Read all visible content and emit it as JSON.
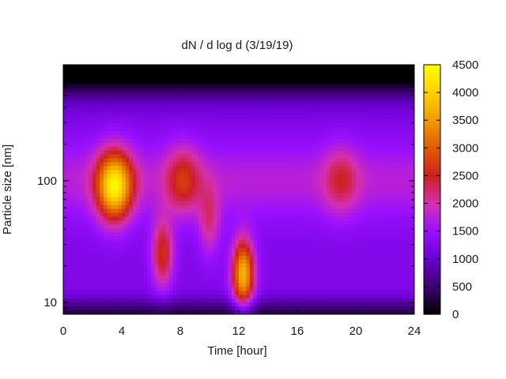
{
  "chart_data": {
    "type": "heatmap",
    "title": "dN / d log d (3/19/19)",
    "xlabel": "Time [hour]",
    "ylabel": "Particle size [nm]",
    "xlim": [
      0,
      24
    ],
    "xticks": [
      0,
      4,
      8,
      12,
      16,
      20,
      24
    ],
    "y_scale": "log",
    "ylim": [
      8,
      900
    ],
    "yticks": [
      10,
      100
    ],
    "colorbar": {
      "range": [
        0,
        4500
      ],
      "ticks": [
        0,
        500,
        1000,
        1500,
        2000,
        2500,
        3000,
        3500,
        4000,
        4500
      ],
      "colormap": [
        "#000000",
        "#3c0070",
        "#6a00d0",
        "#9a10ff",
        "#d530b0",
        "#cc2020",
        "#e05a00",
        "#f09a00",
        "#ffd000",
        "#ffff00"
      ]
    },
    "background_level": 1500,
    "features": [
      {
        "time": 3.5,
        "size": 90,
        "peak": 4200
      },
      {
        "time": 6.8,
        "size": 25,
        "peak": 2850
      },
      {
        "time": 12.3,
        "size": 17,
        "peak": 4000
      },
      {
        "time": 8.2,
        "size": 100,
        "peak": 2500
      },
      {
        "time": 10.0,
        "size": 45,
        "peak": 2300
      },
      {
        "time": 19.0,
        "size": 100,
        "peak": 2250
      }
    ]
  }
}
